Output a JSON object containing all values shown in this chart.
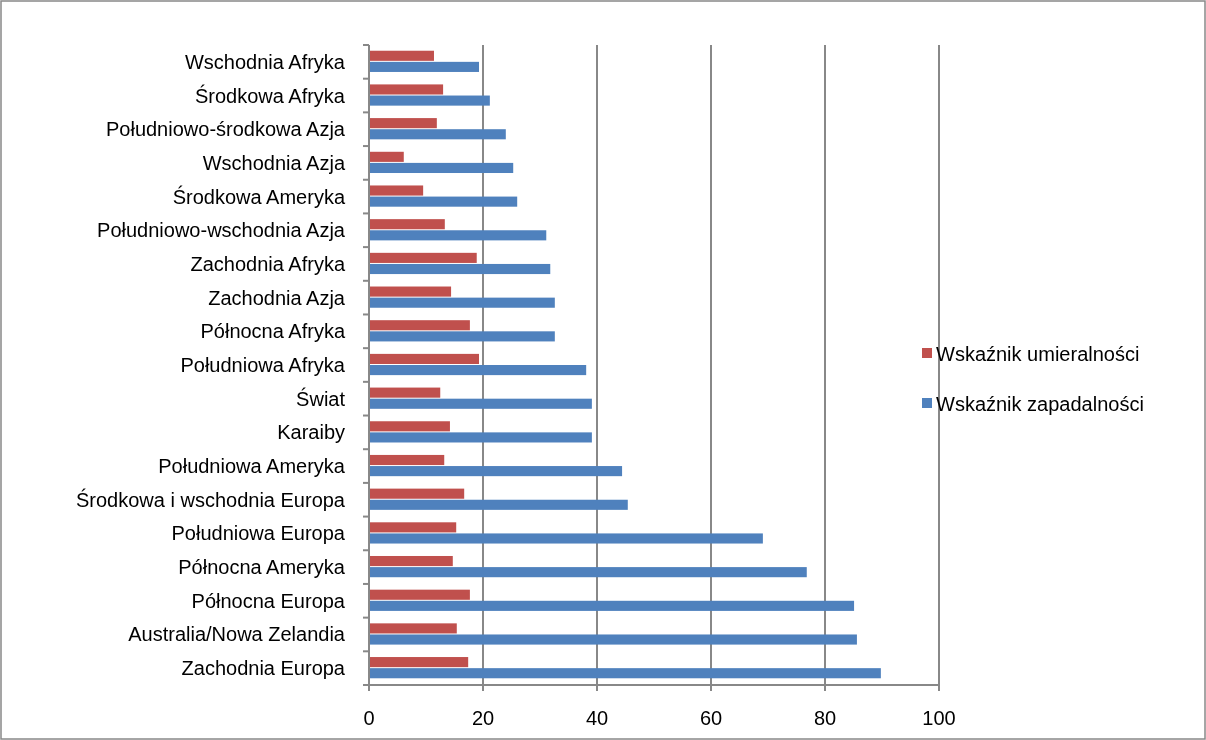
{
  "chart_data": {
    "type": "bar",
    "orientation": "horizontal",
    "categories": [
      "Wschodnia Afryka",
      "Środkowa Afryka",
      "Południowo-środkowa Azja",
      "Wschodnia Azja",
      "Środkowa Ameryka",
      "Południowo-wschodnia Azja",
      "Zachodnia Afryka",
      "Zachodnia Azja",
      "Północna Afryka",
      "Południowa Afryka",
      "Świat",
      "Karaiby",
      "Południowa Ameryka",
      "Środkowa i wschodnia Europa",
      "Południowa Europa",
      "Północna Ameryka",
      "Północna Europa",
      "Australia/Nowa Zelandia",
      "Zachodnia Europa"
    ],
    "series": [
      {
        "name": "Wskaźnik umieralności",
        "color": "#c0504d",
        "values": [
          11.4,
          13.0,
          11.9,
          6.1,
          9.5,
          13.3,
          18.9,
          14.4,
          17.7,
          19.3,
          12.5,
          14.2,
          13.2,
          16.7,
          15.3,
          14.7,
          17.7,
          15.4,
          17.4
        ]
      },
      {
        "name": "Wskaźnik zapadalności",
        "color": "#4f81bd",
        "values": [
          19.3,
          21.2,
          24.0,
          25.3,
          26.0,
          31.1,
          31.8,
          32.6,
          32.6,
          38.1,
          39.1,
          39.1,
          44.4,
          45.4,
          69.1,
          76.8,
          85.1,
          85.6,
          89.8
        ]
      }
    ],
    "xlim": [
      0,
      100
    ],
    "xticks": [
      0,
      20,
      40,
      60,
      80,
      100
    ],
    "grid": "x",
    "legend": "right"
  }
}
